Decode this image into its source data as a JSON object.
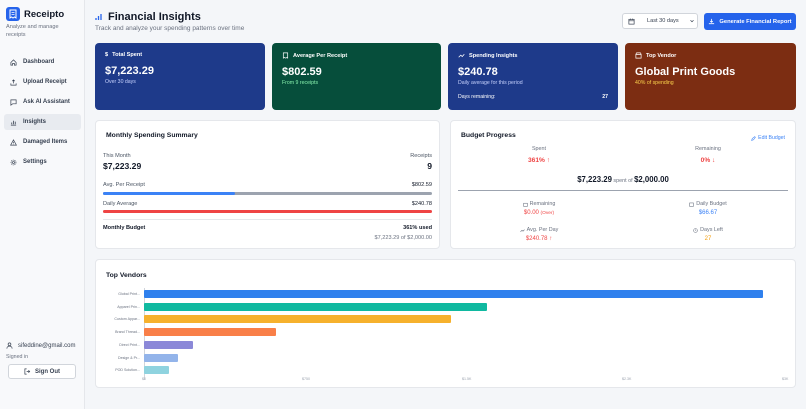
{
  "app": {
    "name": "Receipto",
    "tagline": "Analyze and manage receipts"
  },
  "nav": [
    {
      "label": "Dashboard",
      "icon": "home-icon",
      "active": false
    },
    {
      "label": "Upload Receipt",
      "icon": "upload-icon",
      "active": false
    },
    {
      "label": "Ask AI Assistant",
      "icon": "chat-icon",
      "active": false
    },
    {
      "label": "Insights",
      "icon": "chart-icon",
      "active": true
    },
    {
      "label": "Damaged Items",
      "icon": "warning-icon",
      "active": false
    },
    {
      "label": "Settings",
      "icon": "gear-icon",
      "active": false
    }
  ],
  "user": {
    "email": "sifeddine@gmail.com",
    "signed_in": "Signed in",
    "signout_label": "Sign Out"
  },
  "header": {
    "title": "Financial Insights",
    "subtitle": "Track and analyze your spending patterns over time",
    "date_range": "Last 30 days",
    "report_button": "Generate Financial Report"
  },
  "stats": {
    "total_spent": {
      "label": "Total Spent",
      "value": "$7,223.29",
      "sub": "Over 30 days",
      "color": "#1e3a8a"
    },
    "avg_receipt": {
      "label": "Average Per Receipt",
      "value": "$802.59",
      "sub": "From 9 receipts",
      "color": "#064e3b"
    },
    "spending_insights": {
      "label": "Spending Insights",
      "value": "$240.78",
      "sub": "Daily average for this period",
      "foot_label": "Days remaining:",
      "foot_value": "27",
      "color": "#1e3a8a"
    },
    "top_vendor": {
      "label": "Top Vendor",
      "value": "Global Print Goods",
      "sub": "40% of spending",
      "color": "#7c2d12"
    }
  },
  "monthly": {
    "title": "Monthly Spending Summary",
    "this_month_label": "This Month",
    "this_month_value": "$7,223.29",
    "receipts_label": "Receipts",
    "receipts_value": "9",
    "avg_label": "Avg. Per Receipt",
    "avg_value": "$802.59",
    "avg_fill": 0.4,
    "daily_label": "Daily Average",
    "daily_value": "$240.78",
    "daily_fill": 1.0,
    "budget_label": "Monthly Budget",
    "budget_used": "361% used",
    "budget_detail": "$7,223.29 of $2,000.00"
  },
  "budget": {
    "title": "Budget Progress",
    "edit_label": "Edit Budget",
    "spent_label": "Spent",
    "spent_pct": "361%",
    "remaining_label": "Remaining",
    "remaining_pct": "0%",
    "spent_amount": "$7,223.29",
    "spent_of": "spent of",
    "budget_amount": "$2,000.00",
    "remaining_amt_label": "Remaining",
    "remaining_amt": "$0.00",
    "remaining_note": "(Over)",
    "daily_budget_label": "Daily Budget",
    "daily_budget": "$66.67",
    "avg_per_day_label": "Avg. Per Day",
    "avg_per_day": "$240.78",
    "days_left_label": "Days Left",
    "days_left": "27"
  },
  "vendors_title": "Top Vendors",
  "chart_data": {
    "type": "bar",
    "orientation": "horizontal",
    "categories": [
      "Global Print...",
      "Apparel Prin...",
      "Custom Appar...",
      "Brand Thread...",
      "Direct Print...",
      "Design & Pr...",
      "POD Solution..."
    ],
    "values": [
      2900,
      1610,
      1440,
      620,
      230,
      160,
      115
    ],
    "colors": [
      "#2f80ed",
      "#10b9a0",
      "#f6b12d",
      "#f97f48",
      "#8b88d8",
      "#93b4ea",
      "#8fd3df"
    ],
    "xticks": [
      "$0",
      "$750",
      "$1.5K",
      "$2.3K",
      "$3K"
    ],
    "xlim": [
      0,
      3000
    ],
    "grid": false,
    "legend": "none"
  }
}
